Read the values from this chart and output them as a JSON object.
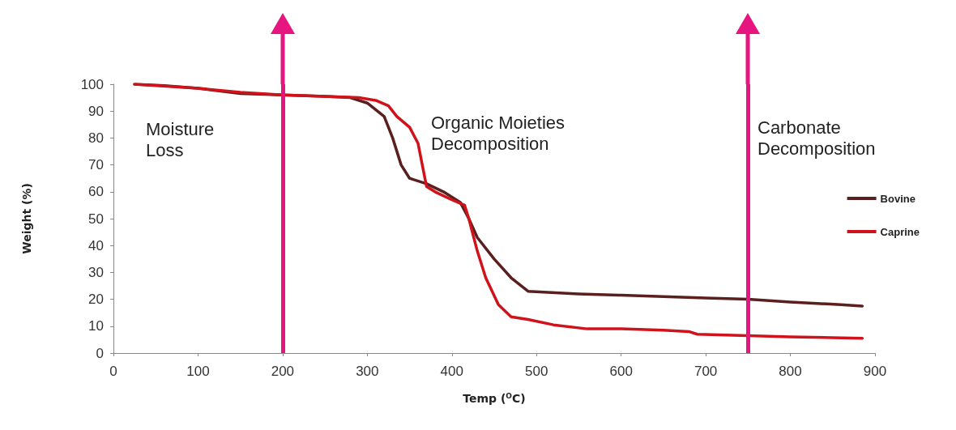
{
  "chart_data": {
    "type": "line",
    "xlabel": "Temp ($^{O}$C)",
    "ylabel": "Weight (%)",
    "xlim": [
      0,
      900
    ],
    "xticks": [
      0,
      100,
      200,
      300,
      400,
      500,
      600,
      700,
      800,
      900
    ],
    "ylim": [
      0,
      100
    ],
    "yticks": [
      0,
      10,
      20,
      30,
      40,
      50,
      60,
      70,
      80,
      90,
      100
    ],
    "grid": false,
    "legend": "right",
    "marker": "none",
    "line_style": "solid",
    "series": [
      {
        "name": "Bovine",
        "color": "#5a1f1f",
        "x": [
          25,
          60,
          100,
          150,
          200,
          250,
          280,
          300,
          320,
          330,
          340,
          350,
          370,
          390,
          410,
          420,
          430,
          450,
          470,
          490,
          550,
          600,
          650,
          700,
          750,
          800,
          860,
          885
        ],
        "values": [
          100,
          99.5,
          98.5,
          96.5,
          96,
          95.5,
          95,
          93,
          88,
          80,
          70,
          65,
          63,
          60,
          56,
          50,
          43,
          35,
          28,
          23,
          22,
          21.5,
          21,
          20.5,
          20,
          19,
          18,
          17.5
        ]
      },
      {
        "name": "Caprine",
        "color": "#d0121b",
        "x": [
          25,
          100,
          150,
          200,
          250,
          290,
          310,
          325,
          335,
          350,
          360,
          365,
          370,
          380,
          400,
          415,
          420,
          430,
          440,
          455,
          470,
          490,
          520,
          560,
          600,
          650,
          680,
          690,
          750,
          800,
          885
        ],
        "values": [
          100,
          98.5,
          97,
          96,
          95.5,
          95,
          94,
          92,
          88,
          84,
          78,
          70,
          62,
          60,
          57,
          55,
          50,
          38,
          28,
          18,
          13.5,
          12.5,
          10.5,
          9,
          9,
          8.5,
          8,
          7,
          6.5,
          6,
          5.5
        ]
      }
    ],
    "ref_lines": [
      {
        "axis": "x",
        "value": 200,
        "color": "#e6157f"
      },
      {
        "axis": "x",
        "value": 750,
        "color": "#e6157f"
      }
    ],
    "annotations": [
      "Moisture Loss",
      "Organic Moieties Decomposition",
      "Carbonate Decomposition"
    ]
  }
}
